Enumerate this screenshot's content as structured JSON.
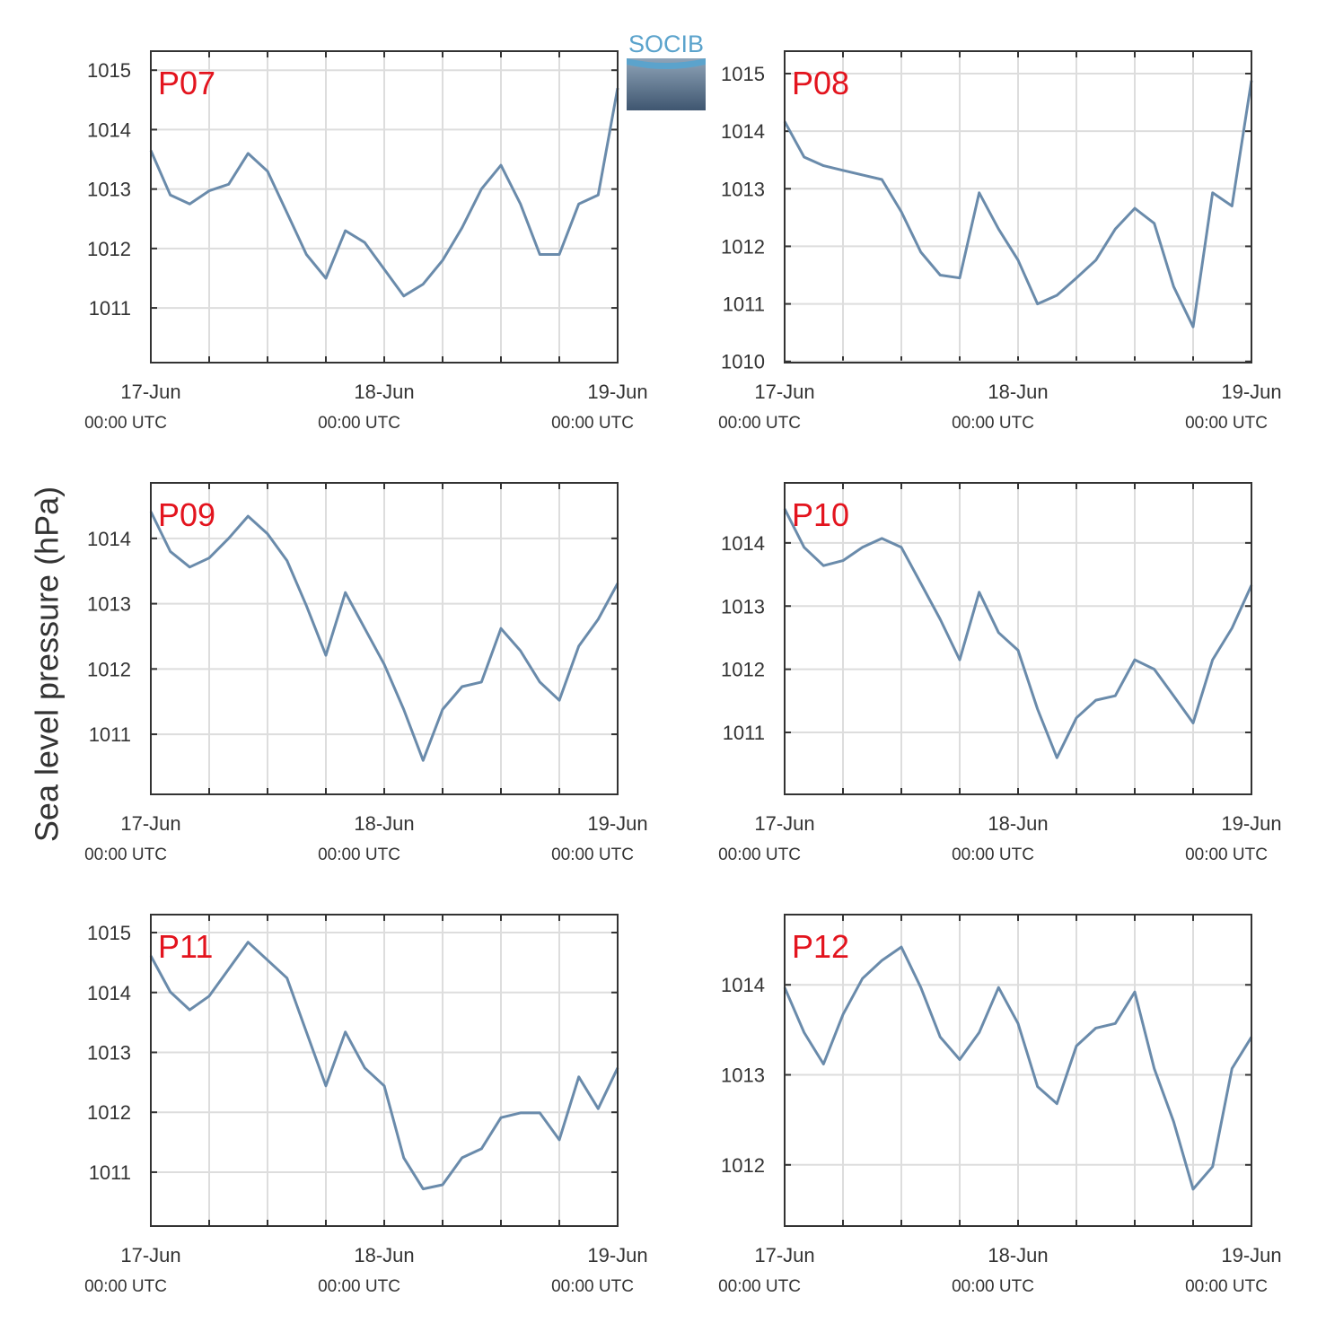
{
  "ylabel": "Sea level pressure (hPa)",
  "logo": "SOCIB",
  "chart_data": [
    {
      "type": "line",
      "title": "P07",
      "x": [
        "17-Jun 00:00",
        "17-Jun 02:00",
        "17-Jun 04:00",
        "17-Jun 06:00",
        "17-Jun 08:00",
        "17-Jun 10:00",
        "17-Jun 12:00",
        "17-Jun 14:00",
        "17-Jun 16:00",
        "17-Jun 18:00",
        "17-Jun 20:00",
        "17-Jun 22:00",
        "18-Jun 00:00",
        "18-Jun 02:00",
        "18-Jun 04:00",
        "18-Jun 06:00",
        "18-Jun 08:00",
        "18-Jun 10:00",
        "18-Jun 12:00",
        "18-Jun 14:00",
        "18-Jun 16:00",
        "18-Jun 18:00",
        "18-Jun 20:00",
        "18-Jun 22:00",
        "19-Jun 00:00"
      ],
      "series": [
        {
          "name": "P07",
          "color": "#6a8bab",
          "values": [
            1013.65,
            1012.9,
            1012.75,
            1012.97,
            1013.08,
            1013.6,
            1013.3,
            1012.6,
            1011.9,
            1011.5,
            1012.3,
            1012.1,
            1011.65,
            1011.2,
            1011.4,
            1011.8,
            1012.35,
            1013.0,
            1013.4,
            1012.75,
            1011.9,
            1011.9,
            1012.75,
            1012.9,
            1014.7
          ]
        }
      ],
      "xlim": [
        "17-Jun 00:00",
        "19-Jun 00:00"
      ],
      "xticks": [
        {
          "value": "17-Jun 00:00",
          "label": "17-Jun",
          "sublabel": "00:00 UTC"
        },
        "17-Jun 06:00",
        "17-Jun 12:00",
        "17-Jun 18:00",
        {
          "value": "18-Jun 00:00",
          "label": "18-Jun",
          "sublabel": "00:00 UTC"
        },
        "18-Jun 06:00",
        "18-Jun 12:00",
        "18-Jun 18:00",
        {
          "value": "19-Jun 00:00",
          "label": "19-Jun",
          "sublabel": "00:00 UTC"
        }
      ],
      "ylim": [
        1010.08,
        1015.32
      ],
      "yticks": [
        1011,
        1012,
        1013,
        1014,
        1015
      ],
      "grid": true
    },
    {
      "type": "line",
      "title": "P08",
      "x": [
        "17-Jun 00:00",
        "17-Jun 02:00",
        "17-Jun 04:00",
        "17-Jun 06:00",
        "17-Jun 08:00",
        "17-Jun 10:00",
        "17-Jun 12:00",
        "17-Jun 14:00",
        "17-Jun 16:00",
        "17-Jun 18:00",
        "17-Jun 20:00",
        "17-Jun 22:00",
        "18-Jun 00:00",
        "18-Jun 02:00",
        "18-Jun 04:00",
        "18-Jun 06:00",
        "18-Jun 08:00",
        "18-Jun 10:00",
        "18-Jun 12:00",
        "18-Jun 14:00",
        "18-Jun 16:00",
        "18-Jun 18:00",
        "18-Jun 20:00",
        "18-Jun 22:00",
        "19-Jun 00:00"
      ],
      "series": [
        {
          "name": "P08",
          "color": "#6a8bab",
          "values": [
            1014.17,
            1013.55,
            1013.4,
            1013.32,
            1013.24,
            1013.16,
            1012.6,
            1011.9,
            1011.5,
            1011.45,
            1012.93,
            1012.3,
            1011.76,
            1011.0,
            1011.15,
            1011.45,
            1011.76,
            1012.3,
            1012.66,
            1012.4,
            1011.3,
            1010.6,
            1012.93,
            1012.7,
            1014.88
          ]
        }
      ],
      "xlim": [
        "17-Jun 00:00",
        "19-Jun 00:00"
      ],
      "xticks": [
        {
          "value": "17-Jun 00:00",
          "label": "17-Jun",
          "sublabel": "00:00 UTC"
        },
        "17-Jun 06:00",
        "17-Jun 12:00",
        "17-Jun 18:00",
        {
          "value": "18-Jun 00:00",
          "label": "18-Jun",
          "sublabel": "00:00 UTC"
        },
        "18-Jun 06:00",
        "18-Jun 12:00",
        "18-Jun 18:00",
        {
          "value": "19-Jun 00:00",
          "label": "19-Jun",
          "sublabel": "00:00 UTC"
        }
      ],
      "ylim": [
        1009.98,
        1015.39
      ],
      "yticks": [
        1010,
        1011,
        1012,
        1013,
        1014,
        1015
      ],
      "grid": true
    },
    {
      "type": "line",
      "title": "P09",
      "x": [
        "17-Jun 00:00",
        "17-Jun 02:00",
        "17-Jun 04:00",
        "17-Jun 06:00",
        "17-Jun 08:00",
        "17-Jun 10:00",
        "17-Jun 12:00",
        "17-Jun 14:00",
        "17-Jun 16:00",
        "17-Jun 18:00",
        "17-Jun 20:00",
        "17-Jun 22:00",
        "18-Jun 00:00",
        "18-Jun 02:00",
        "18-Jun 04:00",
        "18-Jun 06:00",
        "18-Jun 08:00",
        "18-Jun 10:00",
        "18-Jun 12:00",
        "18-Jun 14:00",
        "18-Jun 16:00",
        "18-Jun 18:00",
        "18-Jun 20:00",
        "18-Jun 22:00",
        "19-Jun 00:00"
      ],
      "series": [
        {
          "name": "P09",
          "color": "#6a8bab",
          "values": [
            1014.41,
            1013.8,
            1013.56,
            1013.7,
            1014.0,
            1014.34,
            1014.07,
            1013.66,
            1012.97,
            1012.21,
            1013.17,
            1012.62,
            1012.07,
            1011.38,
            1010.6,
            1011.38,
            1011.73,
            1011.8,
            1012.62,
            1012.28,
            1011.8,
            1011.52,
            1012.35,
            1012.76,
            1013.31
          ]
        }
      ],
      "xlim": [
        "17-Jun 00:00",
        "19-Jun 00:00"
      ],
      "xticks": [
        {
          "value": "17-Jun 00:00",
          "label": "17-Jun",
          "sublabel": "00:00 UTC"
        },
        "17-Jun 06:00",
        "17-Jun 12:00",
        "17-Jun 18:00",
        {
          "value": "18-Jun 00:00",
          "label": "18-Jun",
          "sublabel": "00:00 UTC"
        },
        "18-Jun 06:00",
        "18-Jun 12:00",
        "18-Jun 18:00",
        {
          "value": "19-Jun 00:00",
          "label": "19-Jun",
          "sublabel": "00:00 UTC"
        }
      ],
      "ylim": [
        1010.08,
        1014.85
      ],
      "yticks": [
        1011,
        1012,
        1013,
        1014
      ],
      "grid": true
    },
    {
      "type": "line",
      "title": "P10",
      "x": [
        "17-Jun 00:00",
        "17-Jun 02:00",
        "17-Jun 04:00",
        "17-Jun 06:00",
        "17-Jun 08:00",
        "17-Jun 10:00",
        "17-Jun 12:00",
        "17-Jun 14:00",
        "17-Jun 16:00",
        "17-Jun 18:00",
        "17-Jun 20:00",
        "17-Jun 22:00",
        "18-Jun 00:00",
        "18-Jun 02:00",
        "18-Jun 04:00",
        "18-Jun 06:00",
        "18-Jun 08:00",
        "18-Jun 10:00",
        "18-Jun 12:00",
        "18-Jun 14:00",
        "18-Jun 16:00",
        "18-Jun 18:00",
        "18-Jun 20:00",
        "18-Jun 22:00",
        "19-Jun 00:00"
      ],
      "series": [
        {
          "name": "P10",
          "color": "#6a8bab",
          "values": [
            1014.54,
            1013.93,
            1013.64,
            1013.72,
            1013.93,
            1014.07,
            1013.93,
            1013.36,
            1012.79,
            1012.15,
            1013.22,
            1012.58,
            1012.3,
            1011.37,
            1010.6,
            1011.23,
            1011.51,
            1011.58,
            1012.15,
            1012.0,
            1011.58,
            1011.15,
            1012.15,
            1012.65,
            1013.33
          ]
        }
      ],
      "xlim": [
        "17-Jun 00:00",
        "19-Jun 00:00"
      ],
      "xticks": [
        {
          "value": "17-Jun 00:00",
          "label": "17-Jun",
          "sublabel": "00:00 UTC"
        },
        "17-Jun 06:00",
        "17-Jun 12:00",
        "17-Jun 18:00",
        {
          "value": "18-Jun 00:00",
          "label": "18-Jun",
          "sublabel": "00:00 UTC"
        },
        "18-Jun 06:00",
        "18-Jun 12:00",
        "18-Jun 18:00",
        {
          "value": "19-Jun 00:00",
          "label": "19-Jun",
          "sublabel": "00:00 UTC"
        }
      ],
      "ylim": [
        1010.02,
        1014.95
      ],
      "yticks": [
        1011,
        1012,
        1013,
        1014
      ],
      "grid": true
    },
    {
      "type": "line",
      "title": "P11",
      "x": [
        "17-Jun 00:00",
        "17-Jun 02:00",
        "17-Jun 04:00",
        "17-Jun 06:00",
        "17-Jun 08:00",
        "17-Jun 10:00",
        "17-Jun 12:00",
        "17-Jun 14:00",
        "17-Jun 16:00",
        "17-Jun 18:00",
        "17-Jun 20:00",
        "17-Jun 22:00",
        "18-Jun 00:00",
        "18-Jun 02:00",
        "18-Jun 04:00",
        "18-Jun 06:00",
        "18-Jun 08:00",
        "18-Jun 10:00",
        "18-Jun 12:00",
        "18-Jun 14:00",
        "18-Jun 16:00",
        "18-Jun 18:00",
        "18-Jun 20:00",
        "18-Jun 22:00",
        "19-Jun 00:00"
      ],
      "series": [
        {
          "name": "P11",
          "color": "#6a8bab",
          "values": [
            1014.61,
            1014.01,
            1013.71,
            1013.94,
            1014.39,
            1014.84,
            1014.54,
            1014.24,
            1013.34,
            1012.44,
            1013.34,
            1012.74,
            1012.44,
            1011.24,
            1010.72,
            1010.79,
            1011.24,
            1011.39,
            1011.91,
            1011.99,
            1011.99,
            1011.54,
            1012.59,
            1012.06,
            1012.74
          ]
        }
      ],
      "xlim": [
        "17-Jun 00:00",
        "19-Jun 00:00"
      ],
      "xticks": [
        {
          "value": "17-Jun 00:00",
          "label": "17-Jun",
          "sublabel": "00:00 UTC"
        },
        "17-Jun 06:00",
        "17-Jun 12:00",
        "17-Jun 18:00",
        {
          "value": "18-Jun 00:00",
          "label": "18-Jun",
          "sublabel": "00:00 UTC"
        },
        "18-Jun 06:00",
        "18-Jun 12:00",
        "18-Jun 18:00",
        {
          "value": "19-Jun 00:00",
          "label": "19-Jun",
          "sublabel": "00:00 UTC"
        }
      ],
      "ylim": [
        1010.1,
        1015.3
      ],
      "yticks": [
        1011,
        1012,
        1013,
        1014,
        1015
      ],
      "grid": true
    },
    {
      "type": "line",
      "title": "P12",
      "x": [
        "17-Jun 00:00",
        "17-Jun 02:00",
        "17-Jun 04:00",
        "17-Jun 06:00",
        "17-Jun 08:00",
        "17-Jun 10:00",
        "17-Jun 12:00",
        "17-Jun 14:00",
        "17-Jun 16:00",
        "17-Jun 18:00",
        "17-Jun 20:00",
        "17-Jun 22:00",
        "18-Jun 00:00",
        "18-Jun 02:00",
        "18-Jun 04:00",
        "18-Jun 06:00",
        "18-Jun 08:00",
        "18-Jun 10:00",
        "18-Jun 12:00",
        "18-Jun 14:00",
        "18-Jun 16:00",
        "18-Jun 18:00",
        "18-Jun 20:00",
        "18-Jun 22:00",
        "19-Jun 00:00"
      ],
      "series": [
        {
          "name": "P12",
          "color": "#6a8bab",
          "values": [
            1013.97,
            1013.47,
            1013.12,
            1013.67,
            1014.07,
            1014.27,
            1014.42,
            1013.97,
            1013.42,
            1013.17,
            1013.47,
            1013.97,
            1013.57,
            1012.87,
            1012.68,
            1013.32,
            1013.52,
            1013.57,
            1013.92,
            1013.07,
            1012.48,
            1011.73,
            1011.98,
            1013.07,
            1013.42
          ]
        }
      ],
      "xlim": [
        "17-Jun 00:00",
        "19-Jun 00:00"
      ],
      "xticks": [
        {
          "value": "17-Jun 00:00",
          "label": "17-Jun",
          "sublabel": "00:00 UTC"
        },
        "17-Jun 06:00",
        "17-Jun 12:00",
        "17-Jun 18:00",
        {
          "value": "18-Jun 00:00",
          "label": "18-Jun",
          "sublabel": "00:00 UTC"
        },
        "18-Jun 06:00",
        "18-Jun 12:00",
        "18-Jun 18:00",
        {
          "value": "19-Jun 00:00",
          "label": "19-Jun",
          "sublabel": "00:00 UTC"
        }
      ],
      "ylim": [
        1011.32,
        1014.78
      ],
      "yticks": [
        1012,
        1013,
        1014
      ],
      "grid": true
    }
  ]
}
